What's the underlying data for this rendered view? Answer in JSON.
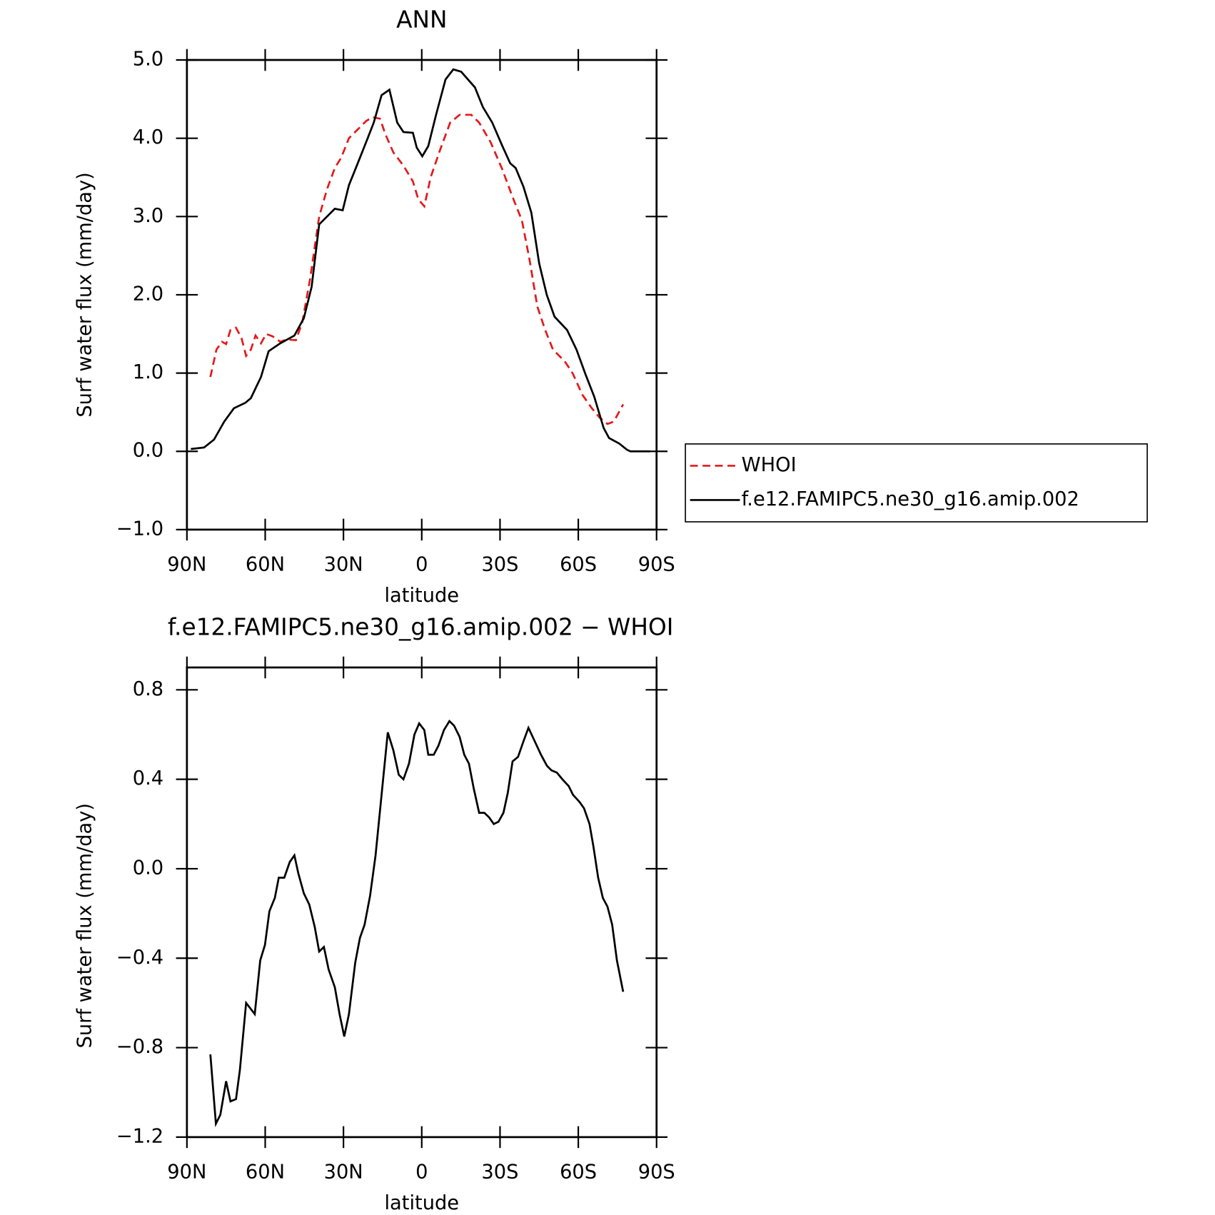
{
  "chart_data": [
    {
      "type": "line",
      "title": "ANN",
      "xlabel": "latitude",
      "ylabel": "Surf water flux (mm/day)",
      "xlim": [
        90,
        -90
      ],
      "xticks": [
        {
          "value": 90,
          "label": "90N"
        },
        {
          "value": 60,
          "label": "60N"
        },
        {
          "value": 30,
          "label": "30N"
        },
        0,
        {
          "value": -30,
          "label": "30S"
        },
        {
          "value": -60,
          "label": "60S"
        },
        {
          "value": -90,
          "label": "90S"
        }
      ],
      "ylim": [
        -1,
        5
      ],
      "yticks": [
        {
          "value": -1,
          "label": "−1.0"
        },
        {
          "value": 0,
          "label": "0.0"
        },
        {
          "value": 1,
          "label": "1.0"
        },
        {
          "value": 2,
          "label": "2.0"
        },
        {
          "value": 3,
          "label": "3.0"
        },
        {
          "value": 4,
          "label": "4.0"
        },
        {
          "value": 5,
          "label": "5.0"
        }
      ],
      "legend": "right",
      "series": [
        {
          "name": "WHOI",
          "color": "#e41a1c",
          "style": "dashed",
          "x": [
            81,
            78.7,
            76.6,
            75,
            73.3,
            71.2,
            69.1,
            67.3,
            65.5,
            63.7,
            61.6,
            59.6,
            57.2,
            54.2,
            51.8,
            48.2,
            45.8,
            42.8,
            39.3,
            36.3,
            33.3,
            30.9,
            27.9,
            24.3,
            21.3,
            18.9,
            16,
            13.9,
            10.9,
            7,
            3.4,
            1.3,
            -1,
            -3.4,
            -7,
            -10.9,
            -14.5,
            -19,
            -22,
            -26.4,
            -30.9,
            -34.8,
            -38.4,
            -41.3,
            -44.3,
            -47.3,
            -50.3,
            -54.8,
            -57.8,
            -61.6,
            -65.2,
            -68.2,
            -71.2,
            -73.6,
            -77.2
          ],
          "values": [
            0.95,
            1.3,
            1.4,
            1.37,
            1.55,
            1.58,
            1.45,
            1.22,
            1.3,
            1.48,
            1.38,
            1.5,
            1.47,
            1.4,
            1.43,
            1.42,
            1.65,
            2.2,
            3.0,
            3.35,
            3.62,
            3.75,
            4.0,
            4.12,
            4.22,
            4.27,
            4.25,
            4.05,
            3.82,
            3.65,
            3.45,
            3.22,
            3.13,
            3.5,
            3.85,
            4.2,
            4.3,
            4.3,
            4.2,
            3.95,
            3.6,
            3.25,
            2.95,
            2.45,
            1.85,
            1.55,
            1.3,
            1.15,
            1.0,
            0.72,
            0.55,
            0.43,
            0.35,
            0.38,
            0.6
          ]
        },
        {
          "name": "f.e12.FAMIPC5.ne30_g16.amip.002",
          "color": "#000000",
          "style": "solid",
          "x": [
            88.5,
            83.4,
            79.6,
            75.7,
            72,
            67.6,
            65.5,
            61.6,
            58.7,
            54.2,
            48.8,
            45.2,
            42.2,
            39.3,
            36.3,
            33.3,
            30.3,
            27.9,
            24.9,
            21.3,
            18.4,
            15.4,
            12.4,
            9.4,
            7,
            3.4,
            1.9,
            -0.2,
            -2.5,
            -5.5,
            -9.1,
            -12.1,
            -15.1,
            -20.4,
            -23.4,
            -27,
            -30.9,
            -33.9,
            -36,
            -39,
            -42,
            -45,
            -47.9,
            -50.9,
            -55.7,
            -59.3,
            -62.8,
            -66.1,
            -69.7,
            -71.8,
            -75.7,
            -78.7,
            -80,
            -84.6,
            -87.6
          ],
          "values": [
            0.03,
            0.05,
            0.15,
            0.38,
            0.55,
            0.62,
            0.68,
            0.95,
            1.28,
            1.38,
            1.48,
            1.7,
            2.1,
            2.9,
            3.0,
            3.1,
            3.08,
            3.4,
            3.65,
            3.95,
            4.2,
            4.55,
            4.62,
            4.2,
            4.08,
            4.07,
            3.88,
            3.77,
            3.9,
            4.3,
            4.75,
            4.88,
            4.85,
            4.65,
            4.4,
            4.2,
            3.9,
            3.68,
            3.62,
            3.38,
            3.05,
            2.4,
            2.0,
            1.72,
            1.55,
            1.3,
            0.98,
            0.7,
            0.3,
            0.17,
            0.1,
            0.02,
            0.0,
            0.0,
            0.0
          ]
        }
      ]
    },
    {
      "type": "line",
      "title": "f.e12.FAMIPC5.ne30_g16.amip.002 − WHOI",
      "xlabel": "latitude",
      "ylabel": "Surf water flux (mm/day)",
      "xlim": [
        90,
        -90
      ],
      "xticks": [
        {
          "value": 90,
          "label": "90N"
        },
        {
          "value": 60,
          "label": "60N"
        },
        {
          "value": 30,
          "label": "30N"
        },
        0,
        {
          "value": -30,
          "label": "30S"
        },
        {
          "value": -60,
          "label": "60S"
        },
        {
          "value": -90,
          "label": "90S"
        }
      ],
      "ylim": [
        -1.2,
        0.9
      ],
      "yticks": [
        {
          "value": -1.2,
          "label": "−1.2"
        },
        {
          "value": -0.8,
          "label": "−0.8"
        },
        {
          "value": -0.4,
          "label": "−0.4"
        },
        {
          "value": 0,
          "label": "0.0"
        },
        0.4,
        0.8
      ],
      "color": "#000000",
      "x": [
        81,
        78.9,
        77.2,
        75,
        73.3,
        71.2,
        69.7,
        67.3,
        64,
        61.9,
        60.1,
        58.4,
        56.3,
        54.8,
        52.7,
        50.6,
        48.8,
        47.3,
        45.2,
        43.1,
        41,
        39.3,
        37.5,
        35.7,
        33.3,
        31.5,
        29.7,
        27.9,
        25.5,
        23.7,
        21.9,
        19.8,
        17.7,
        15.4,
        13,
        10.9,
        8.8,
        7,
        4.9,
        2.8,
        1,
        -1,
        -2.5,
        -4.6,
        -6.4,
        -8.5,
        -10.6,
        -12.4,
        -14.5,
        -16.3,
        -18.1,
        -19.9,
        -22,
        -24,
        -25.8,
        -27.6,
        -29.4,
        -31.3,
        -33,
        -34.8,
        -36.9,
        -39,
        -40.9,
        -43.3,
        -45.7,
        -48,
        -49.7,
        -51.8,
        -53.9,
        -56.3,
        -58,
        -60.4,
        -62.2,
        -64.3,
        -65.8,
        -67.6,
        -69.4,
        -71.2,
        -73,
        -74.8,
        -77.2
      ],
      "values": [
        -0.83,
        -1.14,
        -1.1,
        -0.95,
        -1.04,
        -1.03,
        -0.9,
        -0.6,
        -0.65,
        -0.41,
        -0.34,
        -0.19,
        -0.13,
        -0.04,
        -0.04,
        0.03,
        0.06,
        -0.02,
        -0.11,
        -0.16,
        -0.26,
        -0.37,
        -0.35,
        -0.45,
        -0.53,
        -0.65,
        -0.75,
        -0.65,
        -0.42,
        -0.31,
        -0.25,
        -0.12,
        0.06,
        0.33,
        0.61,
        0.53,
        0.42,
        0.4,
        0.47,
        0.6,
        0.65,
        0.62,
        0.51,
        0.51,
        0.55,
        0.62,
        0.66,
        0.64,
        0.59,
        0.51,
        0.47,
        0.36,
        0.25,
        0.25,
        0.23,
        0.2,
        0.21,
        0.25,
        0.34,
        0.48,
        0.5,
        0.57,
        0.63,
        0.57,
        0.51,
        0.46,
        0.44,
        0.43,
        0.4,
        0.37,
        0.33,
        0.3,
        0.27,
        0.2,
        0.1,
        -0.04,
        -0.13,
        -0.17,
        -0.25,
        -0.41,
        -0.55
      ]
    }
  ]
}
